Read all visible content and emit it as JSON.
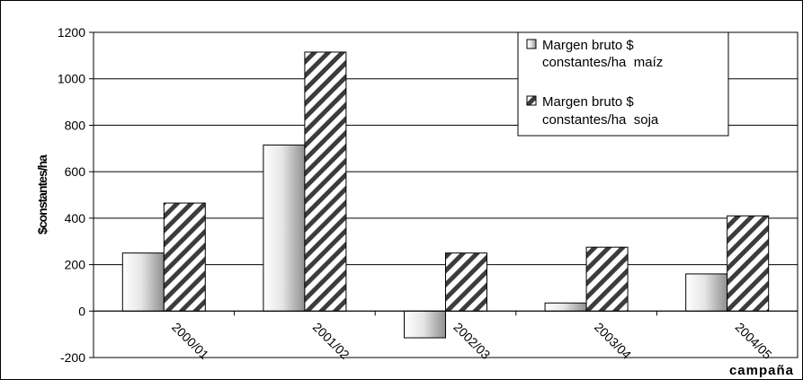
{
  "chart_data": {
    "type": "bar",
    "title": "",
    "xlabel": "campaña",
    "ylabel": "$constantes/ha",
    "ylim": [
      -200,
      1200
    ],
    "ytick_step": 200,
    "grid": "horizontal",
    "legend_position": "top-right",
    "categories": [
      "2000/01",
      "2001/02",
      "2002/03",
      "2003/04",
      "2004/05"
    ],
    "series": [
      {
        "name": "Margen bruto $ constantes/ha maíz",
        "legend_lines": [
          "Margen bruto $",
          "constantes/ha  maíz"
        ],
        "pattern": "gradient-gray",
        "values": [
          250,
          715,
          -115,
          35,
          160
        ]
      },
      {
        "name": "Margen bruto $ constantes/ha soja",
        "legend_lines": [
          "Margen bruto $",
          "constantes/ha  soja"
        ],
        "pattern": "diagonal-hatch",
        "values": [
          465,
          1115,
          250,
          275,
          410
        ]
      }
    ]
  }
}
